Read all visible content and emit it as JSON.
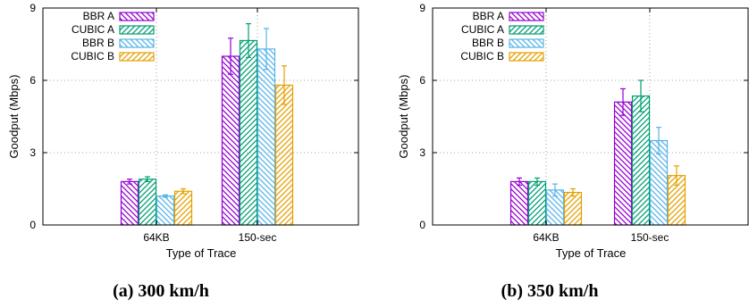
{
  "series_colors": {
    "BBR A": "#9400d3",
    "CUBIC A": "#009e73",
    "BBR B": "#56b4e9",
    "CUBIC B": "#e69f00"
  },
  "chart_data": [
    {
      "type": "bar",
      "caption": "(a) 300 km/h",
      "xlabel": "Type of Trace",
      "ylabel": "Goodput (Mbps)",
      "ylim": [
        0,
        9
      ],
      "yticks": [
        "0",
        "3",
        "6",
        "9"
      ],
      "categories": [
        "64KB",
        "150-sec"
      ],
      "grid": true,
      "legend_position": "top-left",
      "series": [
        {
          "name": "BBR A",
          "values": [
            1.8,
            7.0
          ],
          "errors": [
            0.1,
            0.75
          ]
        },
        {
          "name": "CUBIC A",
          "values": [
            1.9,
            7.65
          ],
          "errors": [
            0.1,
            0.7
          ]
        },
        {
          "name": "BBR B",
          "values": [
            1.2,
            7.3
          ],
          "errors": [
            0.05,
            0.85
          ]
        },
        {
          "name": "CUBIC B",
          "values": [
            1.4,
            5.8
          ],
          "errors": [
            0.1,
            0.8
          ]
        }
      ]
    },
    {
      "type": "bar",
      "caption": "(b) 350 km/h",
      "xlabel": "Type of Trace",
      "ylabel": "Goodput (Mbps)",
      "ylim": [
        0,
        9
      ],
      "yticks": [
        "0",
        "3",
        "6",
        "9"
      ],
      "categories": [
        "64KB",
        "150-sec"
      ],
      "grid": true,
      "legend_position": "top-left",
      "series": [
        {
          "name": "BBR A",
          "values": [
            1.8,
            5.1
          ],
          "errors": [
            0.15,
            0.55
          ]
        },
        {
          "name": "CUBIC A",
          "values": [
            1.8,
            5.35
          ],
          "errors": [
            0.15,
            0.65
          ]
        },
        {
          "name": "BBR B",
          "values": [
            1.45,
            3.5
          ],
          "errors": [
            0.25,
            0.55
          ]
        },
        {
          "name": "CUBIC B",
          "values": [
            1.35,
            2.05
          ],
          "errors": [
            0.15,
            0.4
          ]
        }
      ]
    }
  ]
}
